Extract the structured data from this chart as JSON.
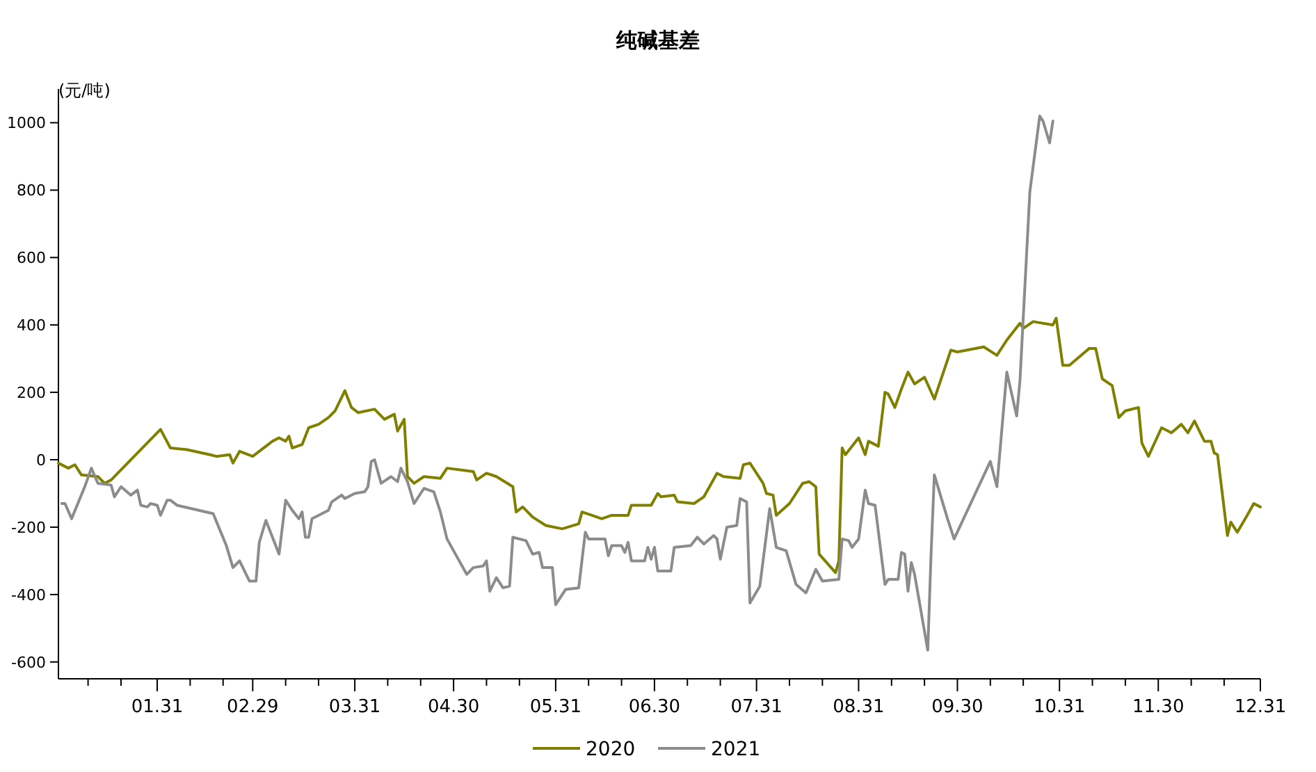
{
  "chart_data": {
    "type": "line",
    "title": "纯碱基差",
    "ylabel": "(元/吨)",
    "xlim": [
      "--01-01",
      "--12-31"
    ],
    "ylim": [
      -650,
      1100
    ],
    "yticks": [
      -600,
      -400,
      -200,
      0,
      200,
      400,
      600,
      800,
      1000
    ],
    "xticks": [
      {
        "value": "--01-10",
        "label": null
      },
      {
        "value": "--01-20",
        "label": null
      },
      {
        "value": "--01-31",
        "label": "01.31"
      },
      {
        "value": "--02-10",
        "label": null
      },
      {
        "value": "--02-20",
        "label": null
      },
      {
        "value": "--02-29",
        "label": "02.29"
      },
      {
        "value": "--03-10",
        "label": null
      },
      {
        "value": "--03-20",
        "label": null
      },
      {
        "value": "--03-31",
        "label": "03.31"
      },
      {
        "value": "--04-10",
        "label": null
      },
      {
        "value": "--04-20",
        "label": null
      },
      {
        "value": "--04-30",
        "label": "04.30"
      },
      {
        "value": "--05-10",
        "label": null
      },
      {
        "value": "--05-20",
        "label": null
      },
      {
        "value": "--05-31",
        "label": "05.31"
      },
      {
        "value": "--06-10",
        "label": null
      },
      {
        "value": "--06-20",
        "label": null
      },
      {
        "value": "--06-30",
        "label": "06.30"
      },
      {
        "value": "--07-10",
        "label": null
      },
      {
        "value": "--07-20",
        "label": null
      },
      {
        "value": "--07-31",
        "label": "07.31"
      },
      {
        "value": "--08-10",
        "label": null
      },
      {
        "value": "--08-20",
        "label": null
      },
      {
        "value": "--08-31",
        "label": "08.31"
      },
      {
        "value": "--09-10",
        "label": null
      },
      {
        "value": "--09-20",
        "label": null
      },
      {
        "value": "--09-30",
        "label": "09.30"
      },
      {
        "value": "--10-10",
        "label": null
      },
      {
        "value": "--10-20",
        "label": null
      },
      {
        "value": "--10-31",
        "label": "10.31"
      },
      {
        "value": "--11-10",
        "label": null
      },
      {
        "value": "--11-20",
        "label": null
      },
      {
        "value": "--11-30",
        "label": "11.30"
      },
      {
        "value": "--12-10",
        "label": null
      },
      {
        "value": "--12-20",
        "label": null
      },
      {
        "value": "--12-31",
        "label": "12.31"
      }
    ],
    "legend": "bottom",
    "series": [
      {
        "name": "2020",
        "color": "#808000",
        "x": [
          "--01-01",
          "--01-04",
          "--01-06",
          "--01-08",
          "--01-13",
          "--01-15",
          "--01-17",
          "--02-01",
          "--02-04",
          "--02-09",
          "--02-16",
          "--02-18",
          "--02-22",
          "--02-23",
          "--02-25",
          "--02-29",
          "--03-06",
          "--03-08",
          "--03-10",
          "--03-11",
          "--03-12",
          "--03-15",
          "--03-17",
          "--03-20",
          "--03-23",
          "--03-25",
          "--03-28",
          "--03-30",
          "--04-01",
          "--04-06",
          "--04-09",
          "--04-12",
          "--04-13",
          "--04-15",
          "--04-16",
          "--04-18",
          "--04-21",
          "--04-26",
          "--04-28",
          "--05-06",
          "--05-07",
          "--05-10",
          "--05-13",
          "--05-18",
          "--05-19",
          "--05-21",
          "--05-24",
          "--05-28",
          "--06-02",
          "--06-07",
          "--06-08",
          "--06-11",
          "--06-14",
          "--06-17",
          "--06-22",
          "--06-23",
          "--06-29",
          "--07-01",
          "--07-02",
          "--07-06",
          "--07-07",
          "--07-12",
          "--07-15",
          "--07-19",
          "--07-21",
          "--07-26",
          "--07-27",
          "--07-29",
          "--08-02",
          "--08-03",
          "--08-05",
          "--08-06",
          "--08-10",
          "--08-14",
          "--08-16",
          "--08-18",
          "--08-19",
          "--08-24",
          "--08-25",
          "--08-26",
          "--08-27",
          "--08-31",
          "--09-02",
          "--09-03",
          "--09-06",
          "--09-08",
          "--09-09",
          "--09-11",
          "--09-13",
          "--09-15",
          "--09-17",
          "--09-20",
          "--09-23",
          "--09-28",
          "--09-30",
          "--10-08",
          "--10-12",
          "--10-15",
          "--10-19",
          "--10-20",
          "--10-23",
          "--10-29",
          "--10-30",
          "--11-01",
          "--11-03",
          "--11-09",
          "--11-11",
          "--11-13",
          "--11-16",
          "--11-18",
          "--11-20",
          "--11-24",
          "--11-25",
          "--11-27",
          "--12-01",
          "--12-04",
          "--12-07",
          "--12-09",
          "--12-11",
          "--12-14",
          "--12-16",
          "--12-17",
          "--12-18",
          "--12-21",
          "--12-22",
          "--12-24",
          "--12-27",
          "--12-29",
          "--12-31"
        ],
        "values": [
          -10,
          -25,
          -15,
          -45,
          -50,
          -70,
          -60,
          90,
          35,
          30,
          15,
          10,
          15,
          -10,
          25,
          10,
          55,
          65,
          55,
          70,
          35,
          45,
          95,
          105,
          125,
          145,
          205,
          155,
          140,
          150,
          120,
          135,
          85,
          120,
          -50,
          -70,
          -50,
          -55,
          -25,
          -35,
          -60,
          -40,
          -50,
          -80,
          -155,
          -140,
          -170,
          -195,
          -205,
          -190,
          -155,
          -165,
          -175,
          -165,
          -165,
          -135,
          -135,
          -100,
          -110,
          -105,
          -125,
          -130,
          -110,
          -40,
          -50,
          -55,
          -15,
          -10,
          -70,
          -100,
          -105,
          -165,
          -130,
          -70,
          -65,
          -80,
          -280,
          -335,
          -300,
          35,
          15,
          65,
          15,
          55,
          40,
          200,
          195,
          155,
          210,
          260,
          225,
          245,
          180,
          325,
          320,
          335,
          310,
          355,
          405,
          390,
          410,
          400,
          420,
          280,
          280,
          330,
          330,
          240,
          220,
          125,
          145,
          155,
          50,
          10,
          95,
          80,
          105,
          80,
          115,
          55,
          55,
          20,
          15,
          -225,
          -185,
          -215,
          -165,
          -130,
          -140
        ]
      },
      {
        "name": "2021",
        "color": "#8c8c8c",
        "x": [
          "--01-02",
          "--01-03",
          "--01-05",
          "--01-09",
          "--01-11",
          "--01-13",
          "--01-17",
          "--01-18",
          "--01-20",
          "--01-23",
          "--01-25",
          "--01-26",
          "--01-28",
          "--01-29",
          "--01-31",
          "--02-01",
          "--02-03",
          "--02-04",
          "--02-06",
          "--02-17",
          "--02-21",
          "--02-23",
          "--02-25",
          "--02-28",
          "--03-01",
          "--03-02",
          "--03-04",
          "--03-08",
          "--03-10",
          "--03-12",
          "--03-14",
          "--03-15",
          "--03-16",
          "--03-17",
          "--03-18",
          "--03-20",
          "--03-23",
          "--03-24",
          "--03-27",
          "--03-28",
          "--03-31",
          "--04-03",
          "--04-04",
          "--04-05",
          "--04-06",
          "--04-08",
          "--04-11",
          "--04-13",
          "--04-14",
          "--04-16",
          "--04-18",
          "--04-21",
          "--04-24",
          "--04-26",
          "--04-28",
          "--05-04",
          "--05-06",
          "--05-09",
          "--05-10",
          "--05-11",
          "--05-13",
          "--05-15",
          "--05-17",
          "--05-18",
          "--05-22",
          "--05-24",
          "--05-26",
          "--05-27",
          "--05-30",
          "--05-31",
          "--06-03",
          "--06-07",
          "--06-09",
          "--06-10",
          "--06-15",
          "--06-16",
          "--06-17",
          "--06-20",
          "--06-21",
          "--06-22",
          "--06-23",
          "--06-27",
          "--06-28",
          "--06-29",
          "--06-30",
          "--07-01",
          "--07-05",
          "--07-06",
          "--07-11",
          "--07-13",
          "--07-15",
          "--07-18",
          "--07-19",
          "--07-20",
          "--07-22",
          "--07-25",
          "--07-26",
          "--07-28",
          "--07-29",
          "--08-01",
          "--08-04",
          "--08-06",
          "--08-09",
          "--08-12",
          "--08-15",
          "--08-18",
          "--08-20",
          "--08-25",
          "--08-26",
          "--08-28",
          "--08-29",
          "--08-31",
          "--09-02",
          "--09-03",
          "--09-05",
          "--09-08",
          "--09-09",
          "--09-12",
          "--09-13",
          "--09-14",
          "--09-15",
          "--09-16",
          "--09-17",
          "--09-21",
          "--09-22",
          "--09-23",
          "--09-27",
          "--09-29",
          "--10-10",
          "--10-12",
          "--10-15",
          "--10-18",
          "--10-19",
          "--10-22",
          "--10-25",
          "--10-26",
          "--10-28",
          "--10-29"
        ],
        "values": [
          -130,
          -130,
          -175,
          -80,
          -25,
          -70,
          -75,
          -110,
          -80,
          -105,
          -90,
          -135,
          -140,
          -130,
          -135,
          -165,
          -120,
          -120,
          -135,
          -160,
          -255,
          -320,
          -300,
          -360,
          -360,
          -245,
          -180,
          -280,
          -120,
          -150,
          -175,
          -155,
          -230,
          -230,
          -175,
          -165,
          -150,
          -125,
          -105,
          -115,
          -100,
          -95,
          -80,
          -5,
          0,
          -70,
          -50,
          -65,
          -25,
          -65,
          -130,
          -85,
          -95,
          -155,
          -235,
          -340,
          -320,
          -315,
          -300,
          -390,
          -350,
          -380,
          -375,
          -230,
          -240,
          -280,
          -275,
          -320,
          -320,
          -430,
          -385,
          -380,
          -215,
          -235,
          -235,
          -285,
          -255,
          -255,
          -275,
          -245,
          -300,
          -300,
          -260,
          -295,
          -260,
          -330,
          -330,
          -260,
          -255,
          -230,
          -250,
          -225,
          -235,
          -295,
          -200,
          -195,
          -115,
          -125,
          -425,
          -375,
          -145,
          -260,
          -270,
          -370,
          -395,
          -325,
          -360,
          -355,
          -235,
          -240,
          -260,
          -235,
          -90,
          -130,
          -135,
          -370,
          -355,
          -355,
          -275,
          -280,
          -390,
          -305,
          -340,
          -565,
          -280,
          -45,
          -175,
          -235,
          -5,
          -80,
          260,
          130,
          235,
          795,
          1020,
          1005,
          940,
          1005
        ]
      }
    ]
  }
}
